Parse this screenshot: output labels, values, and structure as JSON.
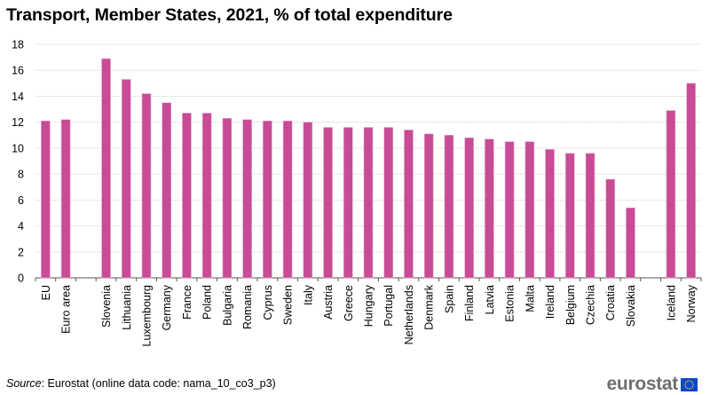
{
  "chart_data": {
    "type": "bar",
    "title": "Transport, Member States, 2021, % of total expenditure",
    "xlabel": "",
    "ylabel": "",
    "ylim": [
      0,
      18
    ],
    "yticks": [
      0,
      2,
      4,
      6,
      8,
      10,
      12,
      14,
      16,
      18
    ],
    "grid": true,
    "legend": "none",
    "bar_color": "#c84b96",
    "categories": [
      "EU",
      "Euro area",
      "",
      "Slovenia",
      "Lithuania",
      "Luxembourg",
      "Germany",
      "France",
      "Poland",
      "Bulgaria",
      "Romania",
      "Cyprus",
      "Sweden",
      "Italy",
      "Austria",
      "Greece",
      "Hungary",
      "Portugal",
      "Netherlands",
      "Denmark",
      "Spain",
      "Finland",
      "Latvia",
      "Estonia",
      "Malta",
      "Ireland",
      "Belgium",
      "Czechia",
      "Croatia",
      "Slovakia",
      "",
      "Iceland",
      "Norway"
    ],
    "values": [
      12.1,
      12.2,
      null,
      16.9,
      15.3,
      14.2,
      13.5,
      12.7,
      12.7,
      12.3,
      12.2,
      12.1,
      12.1,
      12.0,
      11.6,
      11.6,
      11.6,
      11.6,
      11.4,
      11.1,
      11.0,
      10.8,
      10.7,
      10.5,
      10.5,
      9.9,
      9.6,
      9.6,
      7.6,
      5.4,
      null,
      12.9,
      15.0
    ]
  },
  "footer": {
    "source_label": "Source",
    "source_text": ": Eurostat (online data code: nama_10_co3_p3)",
    "logo_text": "eurostat",
    "logo_icon": "eu-flag-icon"
  }
}
